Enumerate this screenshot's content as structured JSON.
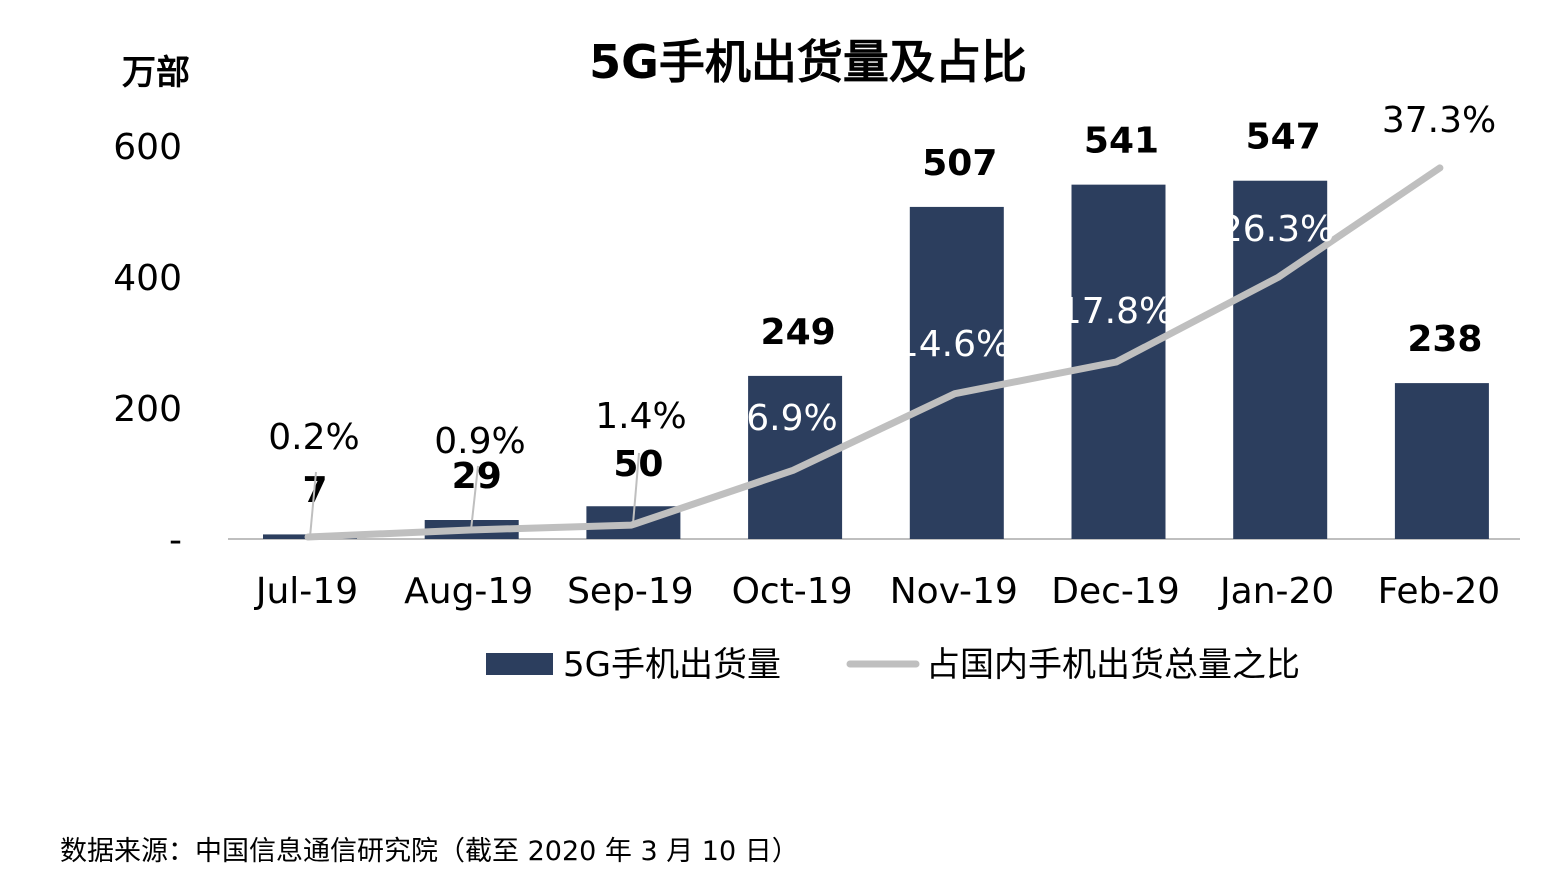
{
  "source_note": "数据来源：中国信息通信研究院（截至 2020 年 3 月 10 日）",
  "colors": {
    "bar": "#2c3e5e",
    "line": "#bfbfbf",
    "axis": "#bfbfbf"
  },
  "chart_data": {
    "type": "bar",
    "title": "5G手机出货量及占比",
    "ylabel": "万部",
    "ylim": [
      0,
      600
    ],
    "yticks": [
      {
        "value": 0,
        "label": "-"
      },
      {
        "value": 200,
        "label": "200"
      },
      {
        "value": 400,
        "label": "400"
      },
      {
        "value": 600,
        "label": "600"
      }
    ],
    "categories": [
      "Jul-19",
      "Aug-19",
      "Sep-19",
      "Oct-19",
      "Nov-19",
      "Dec-19",
      "Jan-20",
      "Feb-20"
    ],
    "series": [
      {
        "name": "5G手机出货量",
        "type": "bar",
        "values": [
          7,
          29,
          50,
          249,
          507,
          541,
          547,
          238
        ],
        "labels": [
          "7",
          "29",
          "50",
          "249",
          "507",
          "541",
          "547",
          "238"
        ]
      },
      {
        "name": "占国内手机出货总量之比",
        "type": "line",
        "axis": "secondary",
        "values": [
          0.2,
          0.9,
          1.4,
          6.9,
          14.6,
          17.8,
          26.3,
          37.3
        ],
        "labels": [
          "0.2%",
          "0.9%",
          "1.4%",
          "6.9%",
          "14.6%",
          "17.8%",
          "26.3%",
          "37.3%"
        ]
      }
    ],
    "legend": "bottom",
    "grid": false
  }
}
